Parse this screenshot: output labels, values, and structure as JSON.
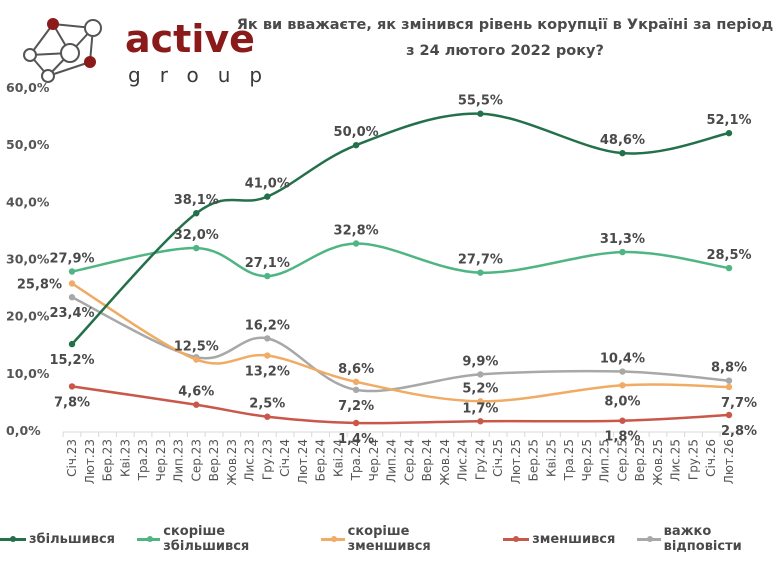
{
  "logo": {
    "word": "active",
    "sub": "group",
    "brand_color": "#8b1a1a"
  },
  "chart_data": {
    "type": "line",
    "title": "Як ви вважаєте, як змінився рівень корупції в Україні за період з 24 лютого 2022 року?",
    "title_lines": [
      "Як ви вважаєте, як змінився рівень корупції в Україні за період",
      "з 24 лютого 2022 року?"
    ],
    "xlabel": "",
    "ylabel": "",
    "ylim": [
      0,
      60
    ],
    "y_ticks": [
      "0,0%",
      "10,0%",
      "20,0%",
      "30,0%",
      "40,0%",
      "50,0%",
      "60,0%"
    ],
    "y_tick_values": [
      0,
      10,
      20,
      30,
      40,
      50,
      60
    ],
    "grid": false,
    "legend_position": "bottom",
    "categories": [
      "Січ.23",
      "Лют.23",
      "Бер.23",
      "Кві.23",
      "Тра.23",
      "Чер.23",
      "Лип.23",
      "Сер.23",
      "Вер.23",
      "Жов.23",
      "Лис.23",
      "Гру.23",
      "Січ.24",
      "Лют.24",
      "Бер.24",
      "Кві.24",
      "Тра.24",
      "Чер.24",
      "Лип.24",
      "Сер.24",
      "Вер.24",
      "Жов.24",
      "Лис.24",
      "Гру.24",
      "Січ.25",
      "Лют.25",
      "Бер.25",
      "Кві.25",
      "Тра.25",
      "Чер.25",
      "Лип.25",
      "Сер.25",
      "Вер.25",
      "Жов.25",
      "Лис.25",
      "Гру.25",
      "Січ.26",
      "Лют.26"
    ],
    "series": [
      {
        "name": "збільшився",
        "color": "#24704a",
        "points": [
          {
            "x": "Січ.23",
            "y": 15.2,
            "label": "15,2%",
            "pos": "below"
          },
          {
            "x": "Сер.23",
            "y": 38.1,
            "label": "38,1%",
            "pos": "above"
          },
          {
            "x": "Гру.23",
            "y": 41.0,
            "label": "41,0%",
            "pos": "above"
          },
          {
            "x": "Тра.24",
            "y": 50.0,
            "label": "50,0%",
            "pos": "above"
          },
          {
            "x": "Гру.24",
            "y": 55.5,
            "label": "55,5%",
            "pos": "above"
          },
          {
            "x": "Сер.25",
            "y": 48.6,
            "label": "48,6%",
            "pos": "above"
          },
          {
            "x": "Лют.26",
            "y": 52.1,
            "label": "52,1%",
            "pos": "above"
          }
        ]
      },
      {
        "name": "скоріше збільшився",
        "color": "#4fb583",
        "points": [
          {
            "x": "Січ.23",
            "y": 27.9,
            "label": "27,9%",
            "pos": "above"
          },
          {
            "x": "Сер.23",
            "y": 32.0,
            "label": "32,0%",
            "pos": "above"
          },
          {
            "x": "Гру.23",
            "y": 27.1,
            "label": "27,1%",
            "pos": "above"
          },
          {
            "x": "Тра.24",
            "y": 32.8,
            "label": "32,8%",
            "pos": "above"
          },
          {
            "x": "Гру.24",
            "y": 27.7,
            "label": "27,7%",
            "pos": "above"
          },
          {
            "x": "Сер.25",
            "y": 31.3,
            "label": "31,3%",
            "pos": "above"
          },
          {
            "x": "Лют.26",
            "y": 28.5,
            "label": "28,5%",
            "pos": "above"
          }
        ]
      },
      {
        "name": "скоріше зменшився",
        "color": "#f0ab64",
        "points": [
          {
            "x": "Січ.23",
            "y": 25.8,
            "label": "25,8%",
            "pos": "left"
          },
          {
            "x": "Сер.23",
            "y": 12.5,
            "label": "12,5%",
            "pos": "above"
          },
          {
            "x": "Гру.23",
            "y": 13.2,
            "label": "13,2%",
            "pos": "below"
          },
          {
            "x": "Тра.24",
            "y": 8.6,
            "label": "8,6%",
            "pos": "above"
          },
          {
            "x": "Гру.24",
            "y": 5.2,
            "label": "5,2%",
            "pos": "above"
          },
          {
            "x": "Сер.25",
            "y": 8.0,
            "label": "8,0%",
            "pos": "below"
          },
          {
            "x": "Лют.26",
            "y": 7.7,
            "label": "7,7%",
            "pos": "below"
          }
        ]
      },
      {
        "name": "зменшився",
        "color": "#c9574a",
        "points": [
          {
            "x": "Січ.23",
            "y": 7.8,
            "label": "7,8%",
            "pos": "below"
          },
          {
            "x": "Сер.23",
            "y": 4.6,
            "label": "4,6%",
            "pos": "above"
          },
          {
            "x": "Гру.23",
            "y": 2.5,
            "label": "2,5%",
            "pos": "above"
          },
          {
            "x": "Тра.24",
            "y": 1.4,
            "label": "1,4%",
            "pos": "below"
          },
          {
            "x": "Гру.24",
            "y": 1.7,
            "label": "1,7%",
            "pos": "above"
          },
          {
            "x": "Сер.25",
            "y": 1.8,
            "label": "1,8%",
            "pos": "below"
          },
          {
            "x": "Лют.26",
            "y": 2.8,
            "label": "2,8%",
            "pos": "below"
          }
        ]
      },
      {
        "name": "важко відповісти",
        "color": "#a8a8a8",
        "points": [
          {
            "x": "Січ.23",
            "y": 23.4,
            "label": "23,4%",
            "pos": "below"
          },
          {
            "x": "Сер.23",
            "y": 12.9,
            "label": "",
            "pos": "none"
          },
          {
            "x": "Гру.23",
            "y": 16.2,
            "label": "16,2%",
            "pos": "above"
          },
          {
            "x": "Тра.24",
            "y": 7.2,
            "label": "7,2%",
            "pos": "below"
          },
          {
            "x": "Гру.24",
            "y": 9.9,
            "label": "9,9%",
            "pos": "above"
          },
          {
            "x": "Сер.25",
            "y": 10.4,
            "label": "10,4%",
            "pos": "above"
          },
          {
            "x": "Лют.26",
            "y": 8.8,
            "label": "8,8%",
            "pos": "above"
          }
        ]
      }
    ]
  }
}
